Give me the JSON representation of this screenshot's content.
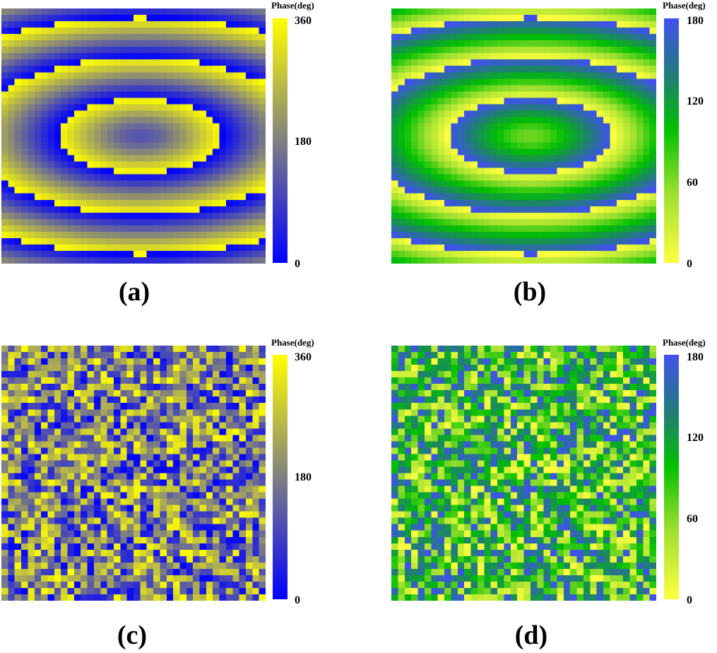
{
  "chart_data": [
    {
      "id": "a",
      "type": "heatmap",
      "caption": "(a)",
      "colorbar_title": "Phase(deg)",
      "colormap": [
        "#0000ff",
        "#808080",
        "#ffff00"
      ],
      "vmin": 0,
      "vmax": 360,
      "ticks": [
        "360",
        "180",
        "0"
      ],
      "grid_size": [
        40,
        40
      ],
      "pattern": "focusing-lens phase profile, elliptical rings centered near column 20, row 20, symmetric top-bottom",
      "grid": false
    },
    {
      "id": "b",
      "type": "heatmap",
      "caption": "(b)",
      "colorbar_title": "Phase(deg)",
      "colormap": [
        "#ffff40",
        "#a0e030",
        "#00c000",
        "#1f8070",
        "#4050f0"
      ],
      "vmin": 0,
      "vmax": 180,
      "ticks": [
        "180",
        "120",
        "60",
        "0"
      ],
      "grid_size": [
        40,
        40
      ],
      "pattern": "same lens profile as (a) mapped to 0-180 range",
      "grid": false
    },
    {
      "id": "c",
      "type": "heatmap",
      "caption": "(c)",
      "colorbar_title": "Phase(deg)",
      "colormap": [
        "#0000ff",
        "#808080",
        "#ffff00"
      ],
      "vmin": 0,
      "vmax": 360,
      "ticks": [
        "360",
        "180",
        "0"
      ],
      "grid_size": [
        40,
        40
      ],
      "pattern": "randomized / coded phase distribution",
      "grid": false
    },
    {
      "id": "d",
      "type": "heatmap",
      "caption": "(d)",
      "colorbar_title": "Phase(deg)",
      "colormap": [
        "#ffff40",
        "#a0e030",
        "#00c000",
        "#1f8070",
        "#4050f0"
      ],
      "vmin": 0,
      "vmax": 180,
      "ticks": [
        "180",
        "120",
        "60",
        "0"
      ],
      "grid_size": [
        40,
        40
      ],
      "pattern": "randomized / coded phase distribution mapped to 0-180 range",
      "grid": false
    }
  ],
  "panels": {
    "a": {
      "caption": "(a)",
      "cbar_title": "Phase(deg)",
      "ticks": [
        "360",
        "180",
        "0"
      ]
    },
    "b": {
      "caption": "(b)",
      "cbar_title": "Phase(deg)",
      "ticks": [
        "180",
        "120",
        "60",
        "0"
      ]
    },
    "c": {
      "caption": "(c)",
      "cbar_title": "Phase(deg)",
      "ticks": [
        "360",
        "180",
        "0"
      ]
    },
    "d": {
      "caption": "(d)",
      "cbar_title": "Phase(deg)",
      "ticks": [
        "180",
        "120",
        "60",
        "0"
      ]
    }
  }
}
